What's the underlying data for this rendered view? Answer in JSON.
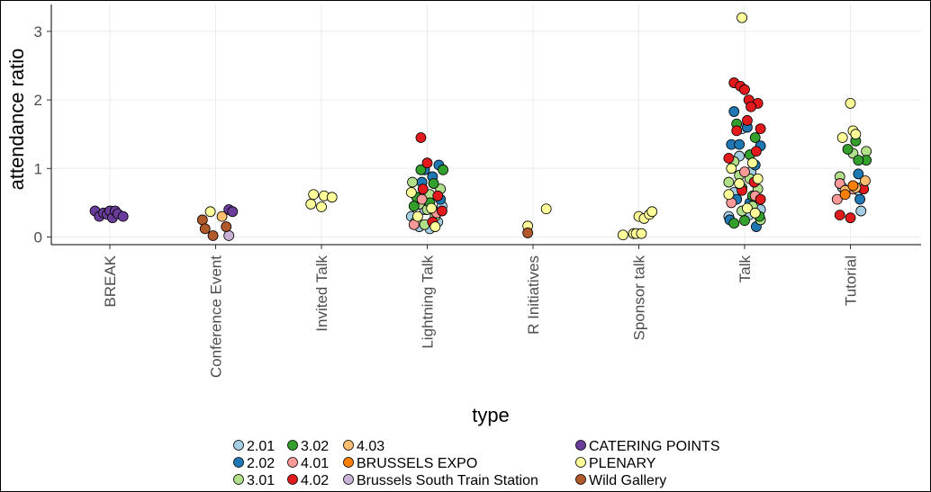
{
  "chart_data": {
    "type": "scatter",
    "title": "",
    "xlabel": "type",
    "ylabel": "attendance ratio",
    "ylim": [
      -0.1,
      3.35
    ],
    "grid": true,
    "categories": [
      "BREAK",
      "Conference Event",
      "Invited Talk",
      "Lightning Talk",
      "R Initiatives",
      "Sponsor talk",
      "Talk",
      "Tutorial"
    ],
    "yticks": [
      0,
      1,
      2,
      3
    ],
    "yticklabels": [
      "0",
      "1",
      "2",
      "3"
    ],
    "legend_position": "bottom",
    "series": [
      {
        "name": "2.01",
        "color": "#a6cee3",
        "points": [
          {
            "cat": "Lightning Talk",
            "dx": -0.3,
            "y": 0.3
          },
          {
            "cat": "Lightning Talk",
            "dx": -0.15,
            "y": 0.15
          },
          {
            "cat": "Lightning Talk",
            "dx": 0.05,
            "y": 0.12
          },
          {
            "cat": "Lightning Talk",
            "dx": 0.2,
            "y": 0.22
          },
          {
            "cat": "Lightning Talk",
            "dx": -0.05,
            "y": 0.4
          },
          {
            "cat": "Lightning Talk",
            "dx": 0.28,
            "y": 0.45
          },
          {
            "cat": "Talk",
            "dx": -0.05,
            "y": 1.58
          },
          {
            "cat": "Talk",
            "dx": 0.12,
            "y": 0.95
          },
          {
            "cat": "Talk",
            "dx": -0.2,
            "y": 0.65
          },
          {
            "cat": "Talk",
            "dx": 0.25,
            "y": 0.5
          },
          {
            "cat": "Talk",
            "dx": -0.3,
            "y": 0.3
          },
          {
            "cat": "Talk",
            "dx": 0.08,
            "y": 0.32
          },
          {
            "cat": "Talk",
            "dx": -0.1,
            "y": 1.18
          },
          {
            "cat": "Talk",
            "dx": 0.3,
            "y": 0.4
          },
          {
            "cat": "Tutorial",
            "dx": -0.15,
            "y": 0.72
          },
          {
            "cat": "Tutorial",
            "dx": 0.15,
            "y": 0.68
          },
          {
            "cat": "Tutorial",
            "dx": 0.2,
            "y": 0.38
          }
        ]
      },
      {
        "name": "2.02",
        "color": "#1f78b4",
        "points": [
          {
            "cat": "Lightning Talk",
            "dx": -0.1,
            "y": 0.8
          },
          {
            "cat": "Lightning Talk",
            "dx": 0.1,
            "y": 0.88
          },
          {
            "cat": "Lightning Talk",
            "dx": 0.22,
            "y": 1.05
          },
          {
            "cat": "Lightning Talk",
            "dx": -0.05,
            "y": 0.98
          },
          {
            "cat": "Lightning Talk",
            "dx": 0.25,
            "y": 0.55
          },
          {
            "cat": "Talk",
            "dx": -0.25,
            "y": 1.35
          },
          {
            "cat": "Talk",
            "dx": -0.2,
            "y": 1.83
          },
          {
            "cat": "Talk",
            "dx": 0.05,
            "y": 1.6
          },
          {
            "cat": "Talk",
            "dx": -0.1,
            "y": 1.35
          },
          {
            "cat": "Talk",
            "dx": 0.3,
            "y": 1.33
          },
          {
            "cat": "Talk",
            "dx": 0.2,
            "y": 1.05
          },
          {
            "cat": "Talk",
            "dx": -0.15,
            "y": 0.55
          },
          {
            "cat": "Talk",
            "dx": 0.1,
            "y": 0.5
          },
          {
            "cat": "Talk",
            "dx": -0.28,
            "y": 0.25
          },
          {
            "cat": "Talk",
            "dx": 0.22,
            "y": 0.15
          },
          {
            "cat": "Tutorial",
            "dx": 0.15,
            "y": 0.92
          },
          {
            "cat": "Tutorial",
            "dx": 0.18,
            "y": 0.55
          }
        ]
      },
      {
        "name": "3.01",
        "color": "#b2df8a",
        "points": [
          {
            "cat": "Lightning Talk",
            "dx": -0.28,
            "y": 0.8
          },
          {
            "cat": "Lightning Talk",
            "dx": -0.15,
            "y": 0.48
          },
          {
            "cat": "Lightning Talk",
            "dx": 0.0,
            "y": 0.4
          },
          {
            "cat": "Lightning Talk",
            "dx": 0.15,
            "y": 0.3
          },
          {
            "cat": "Lightning Talk",
            "dx": 0.25,
            "y": 0.7
          },
          {
            "cat": "Lightning Talk",
            "dx": -0.22,
            "y": 0.22
          },
          {
            "cat": "Lightning Talk",
            "dx": 0.05,
            "y": 0.62
          },
          {
            "cat": "Lightning Talk",
            "dx": -0.05,
            "y": 0.18
          },
          {
            "cat": "Talk",
            "dx": -0.3,
            "y": 0.8
          },
          {
            "cat": "Talk",
            "dx": -0.2,
            "y": 1.1
          },
          {
            "cat": "Talk",
            "dx": 0.1,
            "y": 0.85
          },
          {
            "cat": "Talk",
            "dx": 0.25,
            "y": 0.7
          },
          {
            "cat": "Talk",
            "dx": -0.05,
            "y": 0.38
          },
          {
            "cat": "Talk",
            "dx": 0.3,
            "y": 0.25
          },
          {
            "cat": "Talk",
            "dx": -0.1,
            "y": 0.9
          },
          {
            "cat": "Talk",
            "dx": 0.15,
            "y": 0.45
          },
          {
            "cat": "Tutorial",
            "dx": -0.2,
            "y": 0.88
          },
          {
            "cat": "Tutorial",
            "dx": 0.2,
            "y": 0.72
          },
          {
            "cat": "Tutorial",
            "dx": 0.3,
            "y": 1.25
          },
          {
            "cat": "Tutorial",
            "dx": 0.05,
            "y": 1.22
          }
        ]
      },
      {
        "name": "3.02",
        "color": "#33a02c",
        "points": [
          {
            "cat": "Lightning Talk",
            "dx": -0.2,
            "y": 0.58
          },
          {
            "cat": "Lightning Talk",
            "dx": -0.12,
            "y": 0.98
          },
          {
            "cat": "Lightning Talk",
            "dx": 0.3,
            "y": 0.98
          },
          {
            "cat": "Lightning Talk",
            "dx": 0.12,
            "y": 0.78
          },
          {
            "cat": "Lightning Talk",
            "dx": 0.05,
            "y": 0.5
          },
          {
            "cat": "Lightning Talk",
            "dx": -0.25,
            "y": 0.45
          },
          {
            "cat": "Talk",
            "dx": -0.15,
            "y": 1.65
          },
          {
            "cat": "Talk",
            "dx": 0.2,
            "y": 1.45
          },
          {
            "cat": "Talk",
            "dx": 0.1,
            "y": 1.2
          },
          {
            "cat": "Talk",
            "dx": -0.05,
            "y": 0.72
          },
          {
            "cat": "Talk",
            "dx": 0.28,
            "y": 0.3
          },
          {
            "cat": "Talk",
            "dx": -0.2,
            "y": 0.2
          },
          {
            "cat": "Talk",
            "dx": 0.0,
            "y": 0.24
          },
          {
            "cat": "Talk",
            "dx": 0.15,
            "y": 0.6
          },
          {
            "cat": "Tutorial",
            "dx": 0.1,
            "y": 1.4
          },
          {
            "cat": "Tutorial",
            "dx": -0.05,
            "y": 1.28
          },
          {
            "cat": "Tutorial",
            "dx": 0.3,
            "y": 1.12
          },
          {
            "cat": "Tutorial",
            "dx": 0.15,
            "y": 1.12
          }
        ]
      },
      {
        "name": "4.01",
        "color": "#fb9a99",
        "points": [
          {
            "cat": "Lightning Talk",
            "dx": -0.25,
            "y": 0.18
          },
          {
            "cat": "Lightning Talk",
            "dx": 0.18,
            "y": 0.35
          },
          {
            "cat": "Lightning Talk",
            "dx": -0.1,
            "y": 0.55
          },
          {
            "cat": "Talk",
            "dx": -0.25,
            "y": 0.5
          },
          {
            "cat": "Talk",
            "dx": 0.2,
            "y": 0.6
          },
          {
            "cat": "Talk",
            "dx": 0.0,
            "y": 0.95
          },
          {
            "cat": "Tutorial",
            "dx": -0.2,
            "y": 0.78
          },
          {
            "cat": "Tutorial",
            "dx": -0.25,
            "y": 0.55
          },
          {
            "cat": "Tutorial",
            "dx": 0.05,
            "y": 0.7
          }
        ]
      },
      {
        "name": "4.02",
        "color": "#e31a1c",
        "points": [
          {
            "cat": "Lightning Talk",
            "dx": -0.12,
            "y": 1.45
          },
          {
            "cat": "Lightning Talk",
            "dx": 0.0,
            "y": 1.08
          },
          {
            "cat": "Lightning Talk",
            "dx": 0.2,
            "y": 0.6
          },
          {
            "cat": "Lightning Talk",
            "dx": 0.1,
            "y": 0.22
          },
          {
            "cat": "Lightning Talk",
            "dx": -0.08,
            "y": 0.7
          },
          {
            "cat": "Lightning Talk",
            "dx": 0.28,
            "y": 0.38
          },
          {
            "cat": "Talk",
            "dx": -0.2,
            "y": 2.25
          },
          {
            "cat": "Talk",
            "dx": -0.08,
            "y": 2.2
          },
          {
            "cat": "Talk",
            "dx": 0.0,
            "y": 2.15
          },
          {
            "cat": "Talk",
            "dx": 0.08,
            "y": 2.0
          },
          {
            "cat": "Talk",
            "dx": 0.25,
            "y": 1.95
          },
          {
            "cat": "Talk",
            "dx": 0.12,
            "y": 1.9
          },
          {
            "cat": "Talk",
            "dx": 0.3,
            "y": 1.58
          },
          {
            "cat": "Talk",
            "dx": -0.15,
            "y": 1.55
          },
          {
            "cat": "Talk",
            "dx": 0.05,
            "y": 1.7
          },
          {
            "cat": "Talk",
            "dx": 0.22,
            "y": 1.25
          },
          {
            "cat": "Talk",
            "dx": -0.3,
            "y": 1.15
          },
          {
            "cat": "Talk",
            "dx": 0.18,
            "y": 0.8
          },
          {
            "cat": "Talk",
            "dx": -0.05,
            "y": 0.68
          },
          {
            "cat": "Talk",
            "dx": 0.3,
            "y": 0.55
          },
          {
            "cat": "Tutorial",
            "dx": -0.2,
            "y": 0.32
          },
          {
            "cat": "Tutorial",
            "dx": 0.0,
            "y": 0.28
          },
          {
            "cat": "Tutorial",
            "dx": 0.25,
            "y": 0.7
          }
        ]
      },
      {
        "name": "4.03",
        "color": "#fdbf6f",
        "points": [
          {
            "cat": "Conference Event",
            "dx": 0.12,
            "y": 0.3
          },
          {
            "cat": "Tutorial",
            "dx": -0.1,
            "y": 0.68
          },
          {
            "cat": "Tutorial",
            "dx": 0.1,
            "y": 0.72
          },
          {
            "cat": "Tutorial",
            "dx": 0.28,
            "y": 0.82
          }
        ]
      },
      {
        "name": "BRUSSELS EXPO",
        "color": "#ff7f00",
        "points": [
          {
            "cat": "Tutorial",
            "dx": -0.1,
            "y": 0.62
          },
          {
            "cat": "Tutorial",
            "dx": 0.05,
            "y": 0.75
          }
        ]
      },
      {
        "name": "Brussels South Train Station",
        "color": "#cab2d6",
        "points": [
          {
            "cat": "Conference Event",
            "dx": 0.25,
            "y": 0.02
          }
        ]
      },
      {
        "name": "CATERING POINTS",
        "color": "#6a3d9a",
        "points": [
          {
            "cat": "BREAK",
            "dx": -0.28,
            "y": 0.38
          },
          {
            "cat": "BREAK",
            "dx": -0.2,
            "y": 0.3
          },
          {
            "cat": "BREAK",
            "dx": -0.12,
            "y": 0.35
          },
          {
            "cat": "BREAK",
            "dx": -0.05,
            "y": 0.33
          },
          {
            "cat": "BREAK",
            "dx": 0.0,
            "y": 0.38
          },
          {
            "cat": "BREAK",
            "dx": 0.05,
            "y": 0.28
          },
          {
            "cat": "BREAK",
            "dx": 0.1,
            "y": 0.38
          },
          {
            "cat": "BREAK",
            "dx": 0.15,
            "y": 0.34
          },
          {
            "cat": "BREAK",
            "dx": 0.25,
            "y": 0.3
          },
          {
            "cat": "Conference Event",
            "dx": 0.25,
            "y": 0.4
          },
          {
            "cat": "Conference Event",
            "dx": 0.32,
            "y": 0.37
          }
        ]
      },
      {
        "name": "PLENARY",
        "color": "#ffff99",
        "points": [
          {
            "cat": "Conference Event",
            "dx": -0.1,
            "y": 0.37
          },
          {
            "cat": "Invited Talk",
            "dx": -0.2,
            "y": 0.48
          },
          {
            "cat": "Invited Talk",
            "dx": -0.15,
            "y": 0.62
          },
          {
            "cat": "Invited Talk",
            "dx": 0.0,
            "y": 0.44
          },
          {
            "cat": "Invited Talk",
            "dx": 0.05,
            "y": 0.6
          },
          {
            "cat": "Invited Talk",
            "dx": 0.2,
            "y": 0.58
          },
          {
            "cat": "Lightning Talk",
            "dx": -0.3,
            "y": 0.65
          },
          {
            "cat": "Lightning Talk",
            "dx": -0.18,
            "y": 0.3
          },
          {
            "cat": "Lightning Talk",
            "dx": 0.15,
            "y": 0.15
          },
          {
            "cat": "Lightning Talk",
            "dx": 0.08,
            "y": 0.42
          },
          {
            "cat": "R Initiatives",
            "dx": -0.1,
            "y": 0.16
          },
          {
            "cat": "R Initiatives",
            "dx": 0.25,
            "y": 0.41
          },
          {
            "cat": "Sponsor talk",
            "dx": -0.3,
            "y": 0.03
          },
          {
            "cat": "Sponsor talk",
            "dx": -0.1,
            "y": 0.05
          },
          {
            "cat": "Sponsor talk",
            "dx": -0.05,
            "y": 0.05
          },
          {
            "cat": "Sponsor talk",
            "dx": 0.0,
            "y": 0.3
          },
          {
            "cat": "Sponsor talk",
            "dx": 0.05,
            "y": 0.05
          },
          {
            "cat": "Sponsor talk",
            "dx": 0.1,
            "y": 0.27
          },
          {
            "cat": "Sponsor talk",
            "dx": 0.2,
            "y": 0.33
          },
          {
            "cat": "Sponsor talk",
            "dx": 0.25,
            "y": 0.37
          },
          {
            "cat": "Talk",
            "dx": -0.05,
            "y": 3.2
          },
          {
            "cat": "Talk",
            "dx": -0.25,
            "y": 1.0
          },
          {
            "cat": "Talk",
            "dx": 0.15,
            "y": 1.08
          },
          {
            "cat": "Talk",
            "dx": -0.1,
            "y": 0.78
          },
          {
            "cat": "Talk",
            "dx": 0.25,
            "y": 0.85
          },
          {
            "cat": "Talk",
            "dx": 0.05,
            "y": 0.42
          },
          {
            "cat": "Talk",
            "dx": -0.3,
            "y": 0.62
          },
          {
            "cat": "Talk",
            "dx": 0.2,
            "y": 0.35
          },
          {
            "cat": "Tutorial",
            "dx": 0.0,
            "y": 1.95
          },
          {
            "cat": "Tutorial",
            "dx": -0.15,
            "y": 1.45
          },
          {
            "cat": "Tutorial",
            "dx": 0.05,
            "y": 1.55
          },
          {
            "cat": "Tutorial",
            "dx": 0.1,
            "y": 1.5
          }
        ]
      },
      {
        "name": "Wild Gallery",
        "color": "#b15928",
        "points": [
          {
            "cat": "Conference Event",
            "dx": -0.25,
            "y": 0.25
          },
          {
            "cat": "Conference Event",
            "dx": -0.2,
            "y": 0.12
          },
          {
            "cat": "Conference Event",
            "dx": -0.05,
            "y": 0.02
          },
          {
            "cat": "Conference Event",
            "dx": 0.2,
            "y": 0.15
          },
          {
            "cat": "R Initiatives",
            "dx": -0.1,
            "y": 0.06
          }
        ]
      }
    ],
    "legend_columns": [
      [
        "2.01",
        "2.02",
        "3.01"
      ],
      [
        "3.02",
        "4.01",
        "4.02"
      ],
      [
        "4.03",
        "BRUSSELS EXPO",
        "Brussels South Train Station"
      ],
      [
        "CATERING POINTS",
        "PLENARY",
        "Wild Gallery"
      ]
    ]
  }
}
